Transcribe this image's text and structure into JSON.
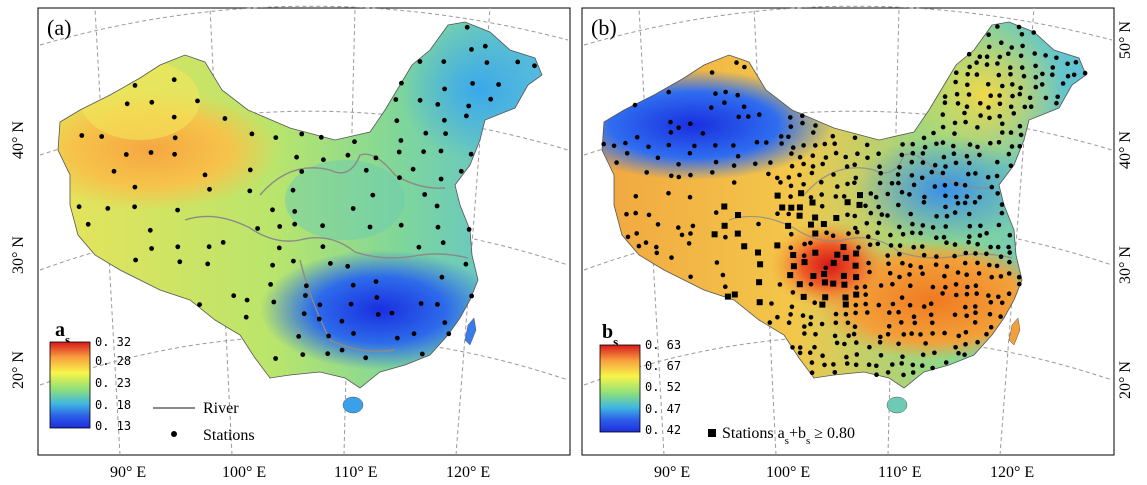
{
  "panels": [
    {
      "id": "a",
      "label": "(a)",
      "variable": "a",
      "variable_sub": "s",
      "colorbar_ticks": [
        "0. 32",
        "0. 28",
        "0. 23",
        "0. 18",
        "0. 13"
      ],
      "legend": {
        "river": "River",
        "stations": "Stations"
      },
      "lon_ticks": [
        "90° E",
        "100° E",
        "110° E",
        "120° E"
      ],
      "lat_ticks": [
        "40° N",
        "30° N",
        "20° N"
      ]
    },
    {
      "id": "b",
      "label": "(b)",
      "variable": "b",
      "variable_sub": "s",
      "colorbar_ticks": [
        "0. 63",
        "0. 67",
        "0. 52",
        "0. 47",
        "0. 42"
      ],
      "legend": {
        "stations_prefix": "Stations a",
        "sub1": "s",
        "mid": "+b",
        "sub2": "s",
        "suffix": " ≥ 0.80"
      },
      "lon_ticks": [
        "90° E",
        "100° E",
        "110° E",
        "120° E"
      ],
      "lat_ticks": [
        "50° N",
        "40° N",
        "30° N",
        "20° N"
      ]
    }
  ],
  "colors": {
    "colorbar": [
      "#d7191c",
      "#f9a03f",
      "#f7f54a",
      "#8fe07a",
      "#3fb6e0",
      "#2c5fe8",
      "#1f2ddb"
    ],
    "river": "#8a8a8a",
    "graticule": "#9a9a9a",
    "station": "#000000"
  }
}
